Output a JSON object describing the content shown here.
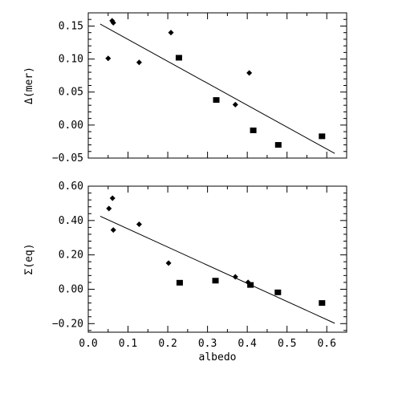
{
  "chart_data": [
    {
      "type": "scatter",
      "panel": "top",
      "ylabel": "Δ(mer)",
      "xlabel": "",
      "xlim": [
        0.0,
        0.65
      ],
      "ylim": [
        -0.05,
        0.17
      ],
      "y_ticks": [
        -0.05,
        0.0,
        0.05,
        0.1,
        0.15
      ],
      "y_tick_labels": [
        "−0.05",
        "0.00",
        "0.05",
        "0.10",
        "0.15"
      ],
      "series": [
        {
          "marker": "diamond",
          "points": [
            {
              "x": 0.05,
              "y": 0.101
            },
            {
              "x": 0.06,
              "y": 0.158
            },
            {
              "x": 0.063,
              "y": 0.155
            },
            {
              "x": 0.128,
              "y": 0.095
            },
            {
              "x": 0.208,
              "y": 0.14
            },
            {
              "x": 0.37,
              "y": 0.031
            },
            {
              "x": 0.405,
              "y": 0.079
            }
          ]
        },
        {
          "marker": "square",
          "points": [
            {
              "x": 0.228,
              "y": 0.102
            },
            {
              "x": 0.322,
              "y": 0.038
            },
            {
              "x": 0.415,
              "y": -0.008
            },
            {
              "x": 0.478,
              "y": -0.03
            },
            {
              "x": 0.588,
              "y": -0.017
            }
          ]
        }
      ],
      "fit_line": {
        "x": [
          0.03,
          0.62
        ],
        "y": [
          0.153,
          -0.043
        ]
      }
    },
    {
      "type": "scatter",
      "panel": "bottom",
      "ylabel": "Σ(eq)",
      "xlabel": "albedo",
      "xlim": [
        0.0,
        0.65
      ],
      "ylim": [
        -0.25,
        0.6
      ],
      "x_ticks": [
        0.0,
        0.1,
        0.2,
        0.3,
        0.4,
        0.5,
        0.6
      ],
      "x_tick_labels": [
        "0.0",
        "0.1",
        "0.2",
        "0.3",
        "0.4",
        "0.5",
        "0.6"
      ],
      "y_ticks": [
        -0.2,
        0.0,
        0.2,
        0.4,
        0.6
      ],
      "y_tick_labels": [
        "−0.20",
        "0.00",
        "0.20",
        "0.40",
        "0.60"
      ],
      "series": [
        {
          "marker": "diamond",
          "points": [
            {
              "x": 0.052,
              "y": 0.47
            },
            {
              "x": 0.061,
              "y": 0.53
            },
            {
              "x": 0.063,
              "y": 0.345
            },
            {
              "x": 0.128,
              "y": 0.378
            },
            {
              "x": 0.202,
              "y": 0.152
            },
            {
              "x": 0.37,
              "y": 0.072
            },
            {
              "x": 0.402,
              "y": 0.04
            }
          ]
        },
        {
          "marker": "square",
          "points": [
            {
              "x": 0.23,
              "y": 0.038
            },
            {
              "x": 0.32,
              "y": 0.05
            },
            {
              "x": 0.408,
              "y": 0.025
            },
            {
              "x": 0.477,
              "y": -0.018
            },
            {
              "x": 0.588,
              "y": -0.08
            }
          ]
        }
      ],
      "fit_line": {
        "x": [
          0.03,
          0.62
        ],
        "y": [
          0.425,
          -0.198
        ]
      }
    }
  ]
}
